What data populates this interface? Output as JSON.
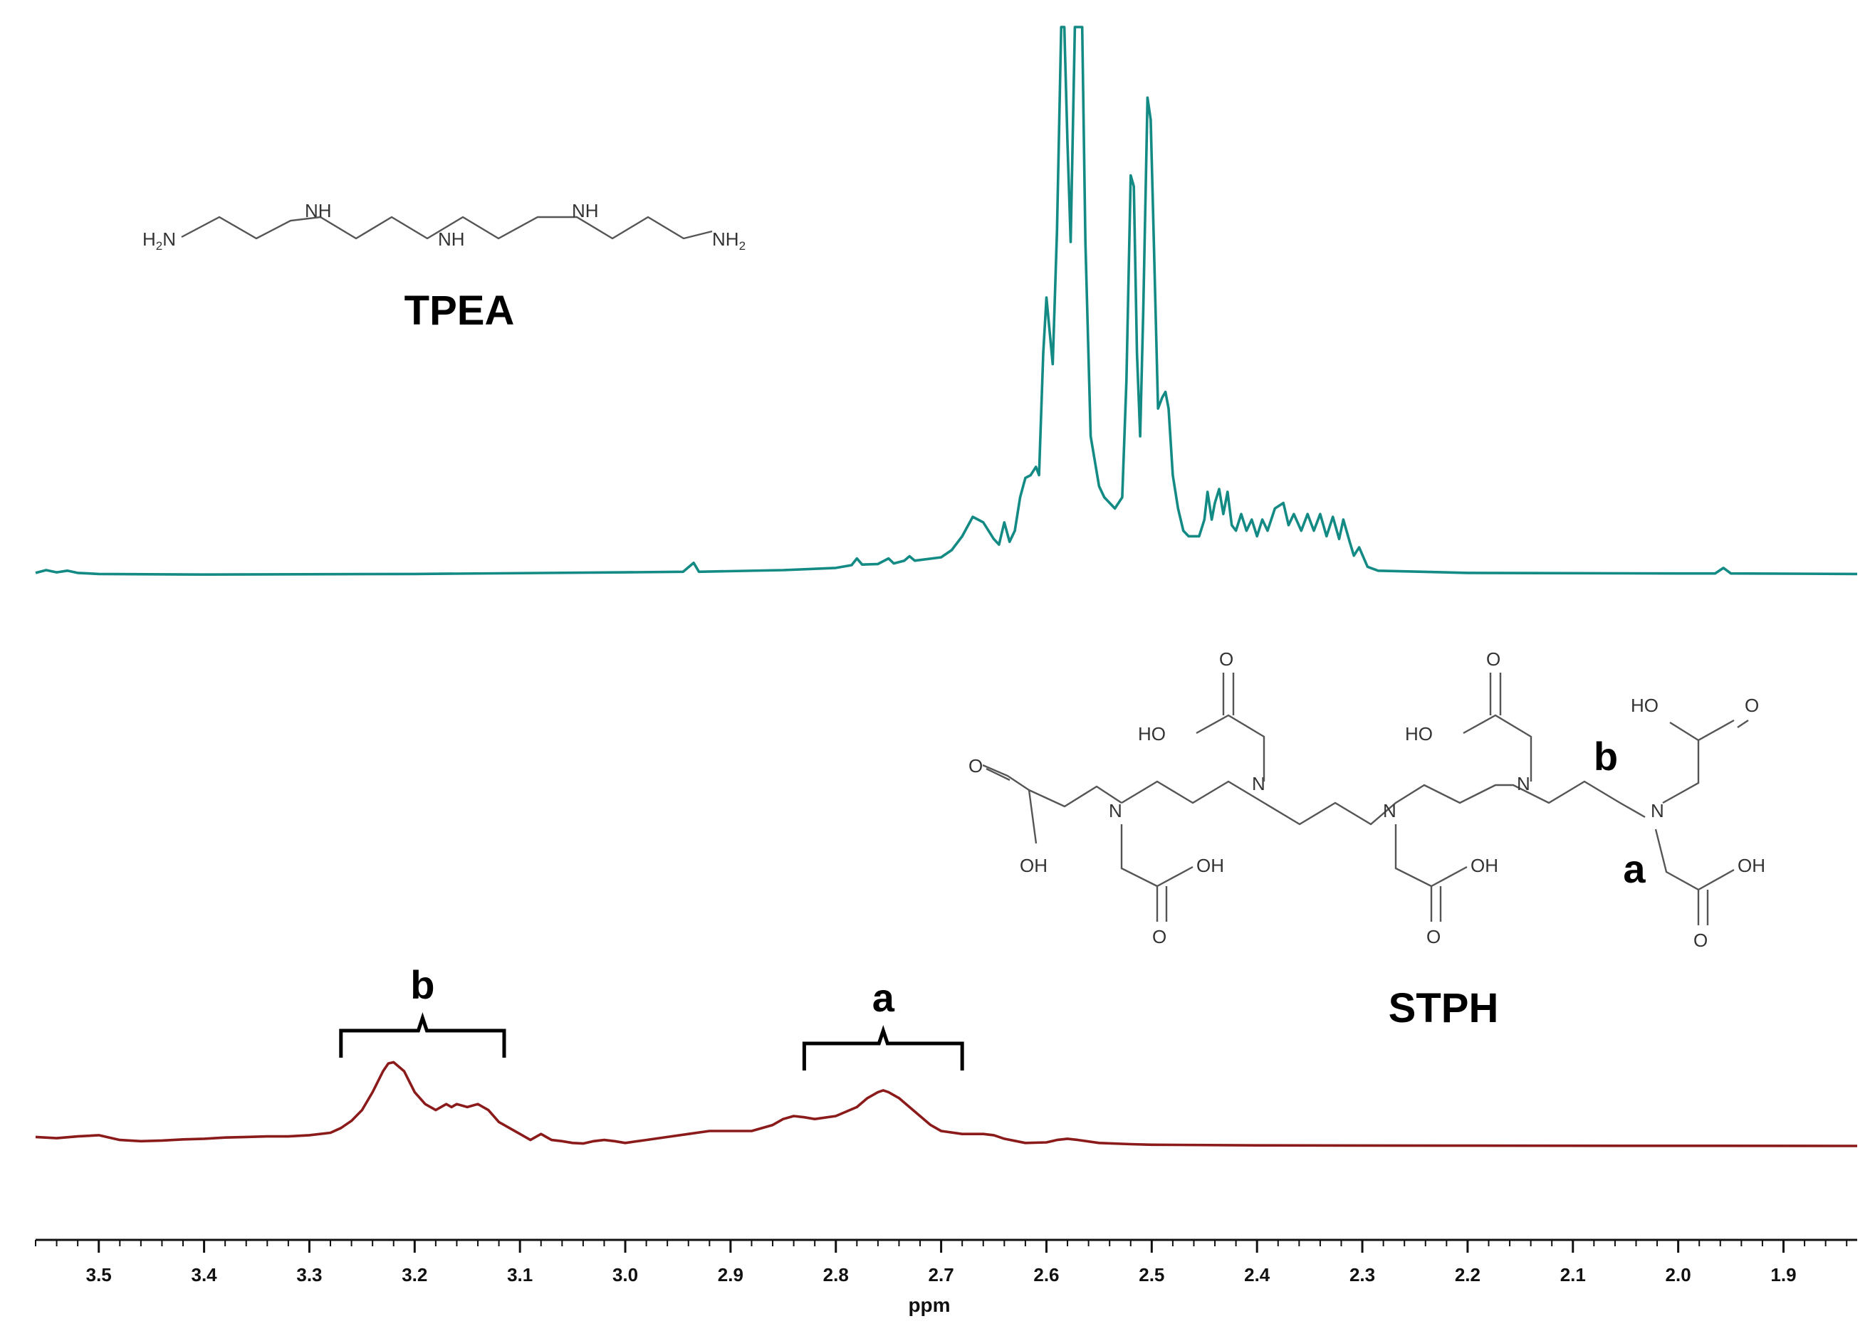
{
  "chart_data": {
    "type": "line",
    "xlabel": "ppm",
    "xlim": [
      3.56,
      1.83
    ],
    "x_reversed": true,
    "x_ticks": [
      3.5,
      3.4,
      3.3,
      3.2,
      3.1,
      3.0,
      2.9,
      2.8,
      2.7,
      2.6,
      2.5,
      2.4,
      2.3,
      2.2,
      2.1,
      2.0,
      1.9
    ],
    "x_tick_labels": [
      "3.5",
      "3.4",
      "3.3",
      "3.2",
      "3.1",
      "3.0",
      "2.9",
      "2.8",
      "2.7",
      "2.6",
      "2.5",
      "2.4",
      "2.3",
      "2.2",
      "2.1",
      "2.0",
      "1.9"
    ],
    "series": [
      {
        "name": "TPEA",
        "color": "#138a84",
        "baseline": 0,
        "points": [
          [
            3.56,
            0.4
          ],
          [
            3.55,
            0.9
          ],
          [
            3.54,
            0.5
          ],
          [
            3.53,
            0.8
          ],
          [
            3.52,
            0.4
          ],
          [
            3.5,
            0.2
          ],
          [
            3.4,
            0.1
          ],
          [
            3.2,
            0.2
          ],
          [
            3.0,
            0.5
          ],
          [
            2.945,
            0.6
          ],
          [
            2.935,
            2.2
          ],
          [
            2.93,
            0.6
          ],
          [
            2.85,
            0.9
          ],
          [
            2.8,
            1.3
          ],
          [
            2.785,
            1.8
          ],
          [
            2.78,
            3.0
          ],
          [
            2.775,
            1.9
          ],
          [
            2.76,
            2.0
          ],
          [
            2.75,
            3.0
          ],
          [
            2.745,
            2.1
          ],
          [
            2.735,
            2.6
          ],
          [
            2.73,
            3.4
          ],
          [
            2.725,
            2.6
          ],
          [
            2.7,
            3.2
          ],
          [
            2.69,
            4.5
          ],
          [
            2.68,
            7.0
          ],
          [
            2.67,
            10.5
          ],
          [
            2.66,
            9.5
          ],
          [
            2.65,
            6.5
          ],
          [
            2.645,
            5.5
          ],
          [
            2.64,
            9.5
          ],
          [
            2.635,
            6.0
          ],
          [
            2.63,
            8.0
          ],
          [
            2.625,
            14.0
          ],
          [
            2.62,
            17.5
          ],
          [
            2.615,
            18.0
          ],
          [
            2.61,
            19.5
          ],
          [
            2.607,
            18.0
          ],
          [
            2.603,
            40.0
          ],
          [
            2.6,
            50.0
          ],
          [
            2.597,
            44.0
          ],
          [
            2.594,
            38.0
          ],
          [
            2.59,
            62.0
          ],
          [
            2.586,
            100.0
          ],
          [
            2.583,
            100.0
          ],
          [
            2.58,
            78.0
          ],
          [
            2.577,
            60.0
          ],
          [
            2.573,
            100.0
          ],
          [
            2.57,
            100.0
          ],
          [
            2.566,
            100.0
          ],
          [
            2.563,
            60.0
          ],
          [
            2.558,
            25.0
          ],
          [
            2.55,
            16.0
          ],
          [
            2.545,
            14.0
          ],
          [
            2.535,
            12.0
          ],
          [
            2.528,
            14.0
          ],
          [
            2.524,
            35.0
          ],
          [
            2.52,
            72.0
          ],
          [
            2.517,
            70.0
          ],
          [
            2.514,
            40.0
          ],
          [
            2.511,
            25.0
          ],
          [
            2.508,
            48.0
          ],
          [
            2.504,
            86.0
          ],
          [
            2.501,
            82.0
          ],
          [
            2.498,
            60.0
          ],
          [
            2.494,
            30.0
          ],
          [
            2.49,
            32.0
          ],
          [
            2.487,
            33.0
          ],
          [
            2.484,
            30.0
          ],
          [
            2.48,
            18.0
          ],
          [
            2.475,
            12.0
          ],
          [
            2.47,
            8.0
          ],
          [
            2.465,
            7.0
          ],
          [
            2.455,
            7.0
          ],
          [
            2.45,
            10.0
          ],
          [
            2.447,
            15.0
          ],
          [
            2.443,
            10.0
          ],
          [
            2.44,
            13.0
          ],
          [
            2.436,
            15.5
          ],
          [
            2.432,
            11.0
          ],
          [
            2.428,
            15.0
          ],
          [
            2.424,
            9.0
          ],
          [
            2.42,
            8.0
          ],
          [
            2.415,
            11.0
          ],
          [
            2.41,
            8.0
          ],
          [
            2.405,
            10.0
          ],
          [
            2.4,
            7.0
          ],
          [
            2.395,
            10.0
          ],
          [
            2.39,
            8.0
          ],
          [
            2.383,
            12.0
          ],
          [
            2.375,
            13.0
          ],
          [
            2.37,
            9.0
          ],
          [
            2.365,
            11.0
          ],
          [
            2.358,
            8.0
          ],
          [
            2.352,
            11.0
          ],
          [
            2.346,
            8.0
          ],
          [
            2.34,
            11.0
          ],
          [
            2.334,
            7.0
          ],
          [
            2.328,
            10.5
          ],
          [
            2.322,
            6.5
          ],
          [
            2.318,
            10.0
          ],
          [
            2.312,
            6.0
          ],
          [
            2.308,
            3.5
          ],
          [
            2.303,
            5.0
          ],
          [
            2.295,
            1.5
          ],
          [
            2.285,
            0.8
          ],
          [
            2.2,
            0.4
          ],
          [
            2.0,
            0.3
          ],
          [
            1.965,
            0.3
          ],
          [
            1.957,
            1.3
          ],
          [
            1.95,
            0.3
          ],
          [
            1.83,
            0.2
          ]
        ]
      },
      {
        "name": "STPH",
        "color": "#8b1a1a",
        "baseline": 0,
        "points": [
          [
            3.56,
            1.5
          ],
          [
            3.54,
            1.3
          ],
          [
            3.52,
            1.6
          ],
          [
            3.5,
            1.8
          ],
          [
            3.48,
            1.0
          ],
          [
            3.46,
            0.8
          ],
          [
            3.44,
            0.9
          ],
          [
            3.42,
            1.1
          ],
          [
            3.4,
            1.2
          ],
          [
            3.38,
            1.4
          ],
          [
            3.36,
            1.5
          ],
          [
            3.34,
            1.6
          ],
          [
            3.32,
            1.6
          ],
          [
            3.3,
            1.8
          ],
          [
            3.28,
            2.2
          ],
          [
            3.27,
            3.0
          ],
          [
            3.26,
            4.2
          ],
          [
            3.25,
            6.0
          ],
          [
            3.24,
            9.0
          ],
          [
            3.23,
            12.5
          ],
          [
            3.225,
            13.8
          ],
          [
            3.22,
            14.0
          ],
          [
            3.21,
            12.5
          ],
          [
            3.2,
            9.0
          ],
          [
            3.19,
            7.0
          ],
          [
            3.18,
            6.0
          ],
          [
            3.17,
            7.0
          ],
          [
            3.165,
            6.5
          ],
          [
            3.16,
            7.0
          ],
          [
            3.15,
            6.5
          ],
          [
            3.14,
            7.0
          ],
          [
            3.13,
            6.0
          ],
          [
            3.12,
            4.0
          ],
          [
            3.11,
            3.0
          ],
          [
            3.1,
            2.0
          ],
          [
            3.09,
            1.0
          ],
          [
            3.08,
            2.0
          ],
          [
            3.07,
            1.0
          ],
          [
            3.06,
            0.8
          ],
          [
            3.05,
            0.5
          ],
          [
            3.04,
            0.4
          ],
          [
            3.03,
            0.8
          ],
          [
            3.02,
            1.0
          ],
          [
            3.01,
            0.8
          ],
          [
            3.0,
            0.5
          ],
          [
            2.98,
            1.0
          ],
          [
            2.96,
            1.5
          ],
          [
            2.94,
            2.0
          ],
          [
            2.92,
            2.5
          ],
          [
            2.9,
            2.5
          ],
          [
            2.88,
            2.5
          ],
          [
            2.86,
            3.5
          ],
          [
            2.85,
            4.5
          ],
          [
            2.84,
            5.0
          ],
          [
            2.83,
            4.8
          ],
          [
            2.82,
            4.5
          ],
          [
            2.8,
            5.0
          ],
          [
            2.78,
            6.5
          ],
          [
            2.77,
            8.0
          ],
          [
            2.76,
            9.0
          ],
          [
            2.755,
            9.3
          ],
          [
            2.75,
            9.0
          ],
          [
            2.74,
            8.0
          ],
          [
            2.73,
            6.5
          ],
          [
            2.72,
            5.0
          ],
          [
            2.71,
            3.5
          ],
          [
            2.7,
            2.5
          ],
          [
            2.68,
            2.0
          ],
          [
            2.66,
            2.0
          ],
          [
            2.65,
            1.8
          ],
          [
            2.64,
            1.2
          ],
          [
            2.62,
            0.5
          ],
          [
            2.6,
            0.6
          ],
          [
            2.59,
            1.0
          ],
          [
            2.58,
            1.2
          ],
          [
            2.57,
            1.0
          ],
          [
            2.55,
            0.5
          ],
          [
            2.52,
            0.3
          ],
          [
            2.5,
            0.2
          ],
          [
            2.4,
            0.1
          ],
          [
            2.2,
            0.05
          ],
          [
            1.83,
            0.0
          ]
        ]
      }
    ],
    "annotations": [
      "TPEA",
      "STPH",
      "a",
      "b"
    ],
    "peak_assignments": [
      {
        "label": "b",
        "from": 3.27,
        "to": 3.115
      },
      {
        "label": "a",
        "from": 2.83,
        "to": 2.68
      }
    ]
  },
  "structures": {
    "tpea": {
      "name": "TPEA",
      "atoms": {
        "h2n": "H",
        "h2n_sub": "2",
        "h2n_n": "N",
        "nh": "NH",
        "nh2": "NH",
        "nh2_sub": "2"
      }
    },
    "stph": {
      "name": "STPH",
      "atoms": {
        "n": "N",
        "o": "O",
        "ho": "HO",
        "oh": "OH"
      },
      "site_labels": {
        "a": "a",
        "b": "b"
      }
    }
  }
}
